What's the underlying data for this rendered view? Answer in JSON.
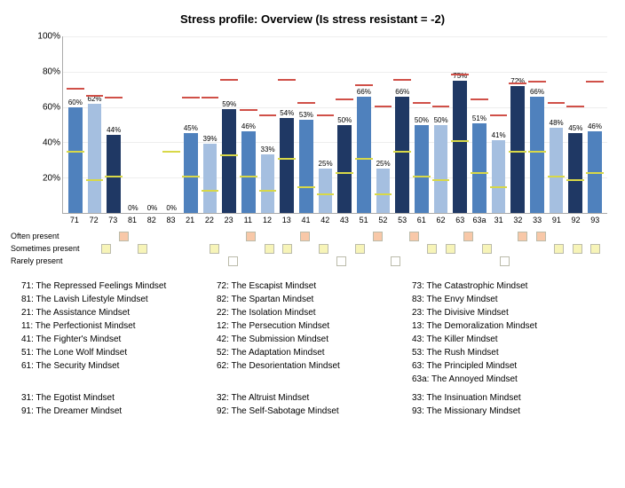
{
  "title": "Stress profile: Overview   (Is stress resistant = -2)",
  "axis": {
    "ylabel_suffix": "%",
    "yticks": [
      20,
      40,
      60,
      80,
      100
    ],
    "ymax": 100,
    "label_fontsize": 10
  },
  "colors": {
    "bar_palette": [
      "#4f81bd",
      "#a5bfe0",
      "#1f3864"
    ],
    "often_present": "#f8c8a8",
    "sometimes_present": "#f7f4b8",
    "rarely_present": "#ffffff",
    "red_marker": "#d05048",
    "yellow_marker": "#d8d848",
    "grid": "#eeeeee",
    "axis": "#aaaaaa",
    "text": "#000000",
    "background": "#ffffff"
  },
  "categories": [
    "71",
    "72",
    "73",
    "81",
    "82",
    "83",
    "21",
    "22",
    "23",
    "11",
    "12",
    "13",
    "41",
    "42",
    "43",
    "51",
    "52",
    "53",
    "61",
    "62",
    "63",
    "63a",
    "31",
    "32",
    "33",
    "91",
    "92",
    "93"
  ],
  "values": [
    60,
    62,
    44,
    0,
    0,
    0,
    45,
    39,
    59,
    46,
    33,
    54,
    53,
    25,
    50,
    66,
    25,
    66,
    50,
    50,
    75,
    51,
    41,
    72,
    66,
    48,
    45,
    46
  ],
  "red_marks": [
    70,
    66,
    65,
    null,
    null,
    null,
    65,
    65,
    75,
    58,
    55,
    75,
    62,
    55,
    64,
    72,
    60,
    75,
    62,
    60,
    78,
    64,
    55,
    73,
    74,
    62,
    60,
    74
  ],
  "yellow_marks": [
    34,
    18,
    20,
    null,
    null,
    34,
    20,
    12,
    32,
    20,
    12,
    30,
    14,
    10,
    22,
    30,
    10,
    34,
    20,
    18,
    40,
    22,
    14,
    34,
    34,
    20,
    18,
    22
  ],
  "presence_rows": [
    {
      "label": "Often present",
      "color_key": "often_present",
      "cells": [
        0,
        1,
        0,
        0,
        0,
        0,
        0,
        0,
        1,
        0,
        0,
        1,
        0,
        0,
        0,
        1,
        0,
        1,
        0,
        0,
        1,
        0,
        0,
        1,
        1,
        0,
        0,
        0
      ]
    },
    {
      "label": "Sometimes present",
      "color_key": "sometimes_present",
      "cells": [
        1,
        0,
        1,
        0,
        0,
        0,
        1,
        0,
        0,
        1,
        1,
        0,
        1,
        0,
        1,
        0,
        0,
        0,
        1,
        1,
        0,
        1,
        0,
        0,
        0,
        1,
        1,
        1
      ]
    },
    {
      "label": "Rarely present",
      "color_key": "rarely_present",
      "cells": [
        0,
        0,
        0,
        0,
        0,
        0,
        0,
        1,
        0,
        0,
        0,
        0,
        0,
        1,
        0,
        0,
        1,
        0,
        0,
        0,
        0,
        0,
        1,
        0,
        0,
        0,
        0,
        0
      ]
    }
  ],
  "legend_rows": [
    [
      "71:  The Repressed Feelings Mindset",
      "72:  The Escapist Mindset",
      "73:  The Catastrophic Mindset"
    ],
    [
      "81:  The Lavish Lifestyle Mindset",
      "82:  The Spartan Mindset",
      "83:  The Envy Mindset"
    ],
    [
      "21:  The Assistance Mindset",
      "22:  The Isolation Mindset",
      "23:  The Divisive Mindset"
    ],
    [
      "11:  The Perfectionist Mindset",
      "12:  The Persecution Mindset",
      "13:  The Demoralization Mindset"
    ],
    [
      "41:  The Fighter's Mindset",
      "42:  The Submission Mindset",
      "43:  The Killer Mindset"
    ],
    [
      "51:  The Lone Wolf Mindset",
      "52:  The Adaptation Mindset",
      "53:  The Rush Mindset"
    ],
    [
      "61:  The Security Mindset",
      "62:  The Desorientation Mindset",
      "63:  The Principled Mindset"
    ],
    [
      "",
      "",
      "63a:  The Annoyed Mindset"
    ],
    [
      "SPACER"
    ],
    [
      "31:  The Egotist Mindset",
      "32:  The Altruist Mindset",
      "33:  The Insinuation Mindset"
    ],
    [
      "91:  The Dreamer Mindset",
      "92:  The Self-Sabotage Mindset",
      "93:  The Missionary Mindset"
    ]
  ]
}
